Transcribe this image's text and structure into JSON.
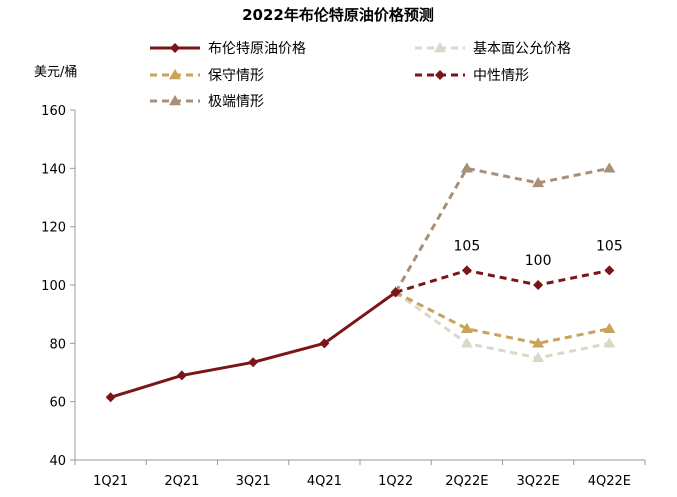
{
  "chart_data": {
    "type": "line",
    "title": "2022年布伦特原油价格预测",
    "ylabel": "美元/桶",
    "xlabel": "",
    "ylim": [
      40,
      160
    ],
    "yticks": [
      40,
      60,
      80,
      100,
      120,
      140,
      160
    ],
    "categories": [
      "1Q21",
      "2Q21",
      "3Q21",
      "4Q21",
      "1Q22",
      "2Q22E",
      "3Q22E",
      "4Q22E"
    ],
    "grid": false,
    "legend_position": "top",
    "series": [
      {
        "name": "布伦特原油价格",
        "color": "#7b1518",
        "dash": "solid",
        "marker": "diamond",
        "values": [
          61.5,
          69,
          73.5,
          80,
          97.5,
          null,
          null,
          null
        ]
      },
      {
        "name": "基本面公允价格",
        "color": "#d9d9c8",
        "dash": "dashed",
        "marker": "triangle",
        "values": [
          null,
          null,
          null,
          null,
          97.5,
          80,
          75,
          80
        ]
      },
      {
        "name": "保守情形",
        "color": "#c9a35a",
        "dash": "dashed",
        "marker": "triangle",
        "values": [
          null,
          null,
          null,
          null,
          97.5,
          85,
          80,
          85
        ]
      },
      {
        "name": "中性情形",
        "color": "#7b1518",
        "dash": "dashed",
        "marker": "diamond",
        "values": [
          null,
          null,
          null,
          null,
          97.5,
          105,
          100,
          105
        ]
      },
      {
        "name": "极端情形",
        "color": "#a89078",
        "dash": "dashed",
        "marker": "triangle",
        "values": [
          null,
          null,
          null,
          null,
          97.5,
          140,
          135,
          140
        ]
      }
    ],
    "annotations": [
      {
        "series": "中性情形",
        "category": "2Q22E",
        "text": "105"
      },
      {
        "series": "中性情形",
        "category": "3Q22E",
        "text": "100"
      },
      {
        "series": "中性情形",
        "category": "4Q22E",
        "text": "105"
      }
    ]
  }
}
